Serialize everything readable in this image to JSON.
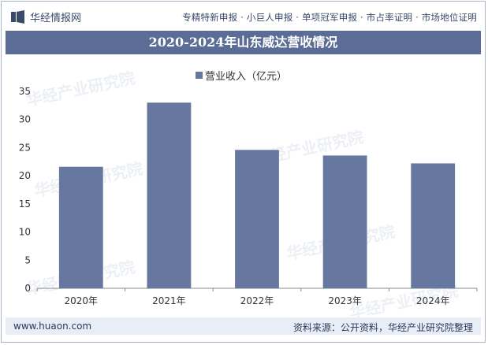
{
  "header": {
    "brand_name": "华经情报网",
    "tagline": "专精特新申报 · 小巨人申报 · 单项冠军申报 · 市占率证明 · 市场地位证明"
  },
  "watermark": "华经产业研究院",
  "footer": {
    "url": "www.huaon.com",
    "source": "资料来源：公开资料，华经产业研究院整理"
  },
  "colors": {
    "bar": "#66789f",
    "title_bg": "#5b6d96",
    "footer_bg": "#e8edf6"
  },
  "chart_data": {
    "type": "bar",
    "title": "2020-2024年山东威达营收情况",
    "categories": [
      "2020年",
      "2021年",
      "2022年",
      "2023年",
      "2024年"
    ],
    "series": [
      {
        "name": "营业收入（亿元）",
        "values": [
          21.6,
          33.0,
          24.6,
          23.6,
          22.2
        ]
      }
    ],
    "ylim": [
      0,
      35
    ],
    "yticks": [
      "0",
      "5",
      "10",
      "15",
      "20",
      "25",
      "30",
      "35"
    ],
    "grid": false,
    "legend": "top-center"
  }
}
